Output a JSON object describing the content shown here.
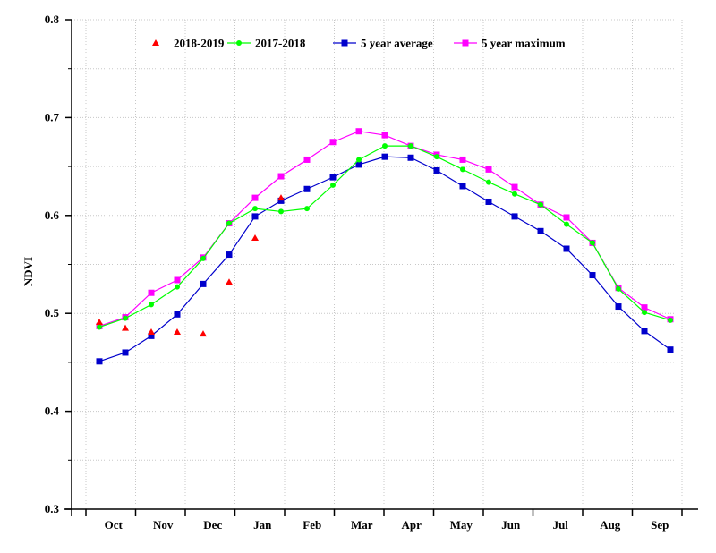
{
  "chart_data": {
    "type": "line",
    "title": "",
    "xlabel": "",
    "ylabel": "NDVI",
    "ylim": [
      0.3,
      0.8
    ],
    "yticks": [
      "0.3",
      "0.4",
      "0.5",
      "0.6",
      "0.7",
      "0.8"
    ],
    "grid": true,
    "legend_position": "top",
    "x_month_labels": [
      "Oct",
      "Nov",
      "Dec",
      "Jan",
      "Feb",
      "Mar",
      "Apr",
      "May",
      "Jun",
      "Jul",
      "Aug",
      "Sep"
    ],
    "x_period_count": 23,
    "series": [
      {
        "name": "2018-2019",
        "color": "#ff0000",
        "marker": "triangle",
        "line": false,
        "x": [
          1,
          2,
          3,
          4,
          5,
          6,
          7,
          8
        ],
        "values": [
          0.491,
          0.485,
          0.481,
          0.481,
          0.479,
          0.532,
          0.577,
          0.618
        ]
      },
      {
        "name": "2017-2018",
        "color": "#00ff00",
        "marker": "circle",
        "line": true,
        "x": [
          1,
          2,
          3,
          4,
          5,
          6,
          7,
          8,
          9,
          10,
          11,
          12,
          13,
          14,
          15,
          16,
          17,
          18,
          19,
          20,
          21,
          22,
          23
        ],
        "values": [
          0.486,
          0.495,
          0.509,
          0.527,
          0.556,
          0.592,
          0.607,
          0.604,
          0.607,
          0.631,
          0.657,
          0.671,
          0.671,
          0.66,
          0.647,
          0.634,
          0.622,
          0.611,
          0.591,
          0.572,
          0.525,
          0.501,
          0.493
        ]
      },
      {
        "name": "5 year average",
        "color": "#0000cc",
        "marker": "square",
        "line": true,
        "x": [
          1,
          2,
          3,
          4,
          5,
          6,
          7,
          8,
          9,
          10,
          11,
          12,
          13,
          14,
          15,
          16,
          17,
          18,
          19,
          20,
          21,
          22,
          23
        ],
        "values": [
          0.451,
          0.46,
          0.477,
          0.499,
          0.53,
          0.56,
          0.599,
          0.615,
          0.627,
          0.639,
          0.652,
          0.66,
          0.659,
          0.646,
          0.63,
          0.614,
          0.599,
          0.584,
          0.566,
          0.539,
          0.507,
          0.482,
          0.463
        ]
      },
      {
        "name": "5 year maximum",
        "color": "#ff00ff",
        "marker": "square",
        "line": true,
        "x": [
          1,
          2,
          3,
          4,
          5,
          6,
          7,
          8,
          9,
          10,
          11,
          12,
          13,
          14,
          15,
          16,
          17,
          18,
          19,
          20,
          21,
          22,
          23
        ],
        "values": [
          0.487,
          0.496,
          0.521,
          0.534,
          0.557,
          0.592,
          0.618,
          0.64,
          0.657,
          0.675,
          0.686,
          0.682,
          0.671,
          0.662,
          0.657,
          0.647,
          0.629,
          0.611,
          0.598,
          0.572,
          0.526,
          0.506,
          0.494
        ]
      }
    ]
  }
}
